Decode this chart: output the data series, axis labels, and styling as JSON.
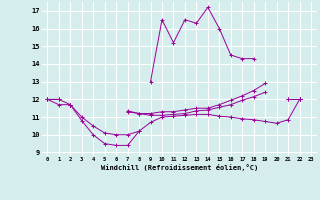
{
  "x": [
    0,
    1,
    2,
    3,
    4,
    5,
    6,
    7,
    8,
    9,
    10,
    11,
    12,
    13,
    14,
    15,
    16,
    17,
    18,
    19,
    20,
    21,
    22,
    23
  ],
  "line1": [
    12.0,
    12.0,
    null,
    null,
    null,
    null,
    null,
    null,
    null,
    13.0,
    16.5,
    15.2,
    16.5,
    16.3,
    17.2,
    16.0,
    14.5,
    14.3,
    14.3,
    null,
    null,
    null,
    null,
    null
  ],
  "line2": [
    12.0,
    12.0,
    11.7,
    10.8,
    10.0,
    9.5,
    9.4,
    9.4,
    10.2,
    null,
    null,
    null,
    null,
    null,
    null,
    null,
    null,
    null,
    null,
    null,
    null,
    12.0,
    12.0,
    null
  ],
  "line3": [
    12.0,
    11.7,
    11.7,
    null,
    null,
    null,
    null,
    11.3,
    11.2,
    11.1,
    11.1,
    11.15,
    11.2,
    11.35,
    11.4,
    11.55,
    11.7,
    11.95,
    12.15,
    12.4,
    null,
    12.0,
    12.0,
    null
  ],
  "line4": [
    null,
    null,
    11.7,
    11.0,
    10.5,
    10.1,
    10.0,
    10.0,
    10.2,
    10.7,
    11.0,
    11.05,
    11.1,
    11.15,
    11.15,
    11.05,
    11.0,
    10.9,
    10.85,
    10.75,
    10.65,
    10.85,
    12.0,
    null
  ],
  "line5": [
    null,
    null,
    11.7,
    null,
    null,
    null,
    null,
    11.35,
    11.2,
    11.2,
    11.3,
    11.3,
    11.4,
    11.5,
    11.5,
    11.7,
    11.95,
    12.2,
    12.5,
    12.9,
    null,
    null,
    12.0,
    null
  ],
  "line_color": "#990099",
  "bg_color": "#d5eeed",
  "grid_color": "#b8d8d8",
  "xlabel": "Windchill (Refroidissement éolien,°C)",
  "ylabel_ticks": [
    9,
    10,
    11,
    12,
    13,
    14,
    15,
    16,
    17
  ],
  "xlim": [
    -0.5,
    23.5
  ],
  "ylim": [
    8.8,
    17.5
  ]
}
